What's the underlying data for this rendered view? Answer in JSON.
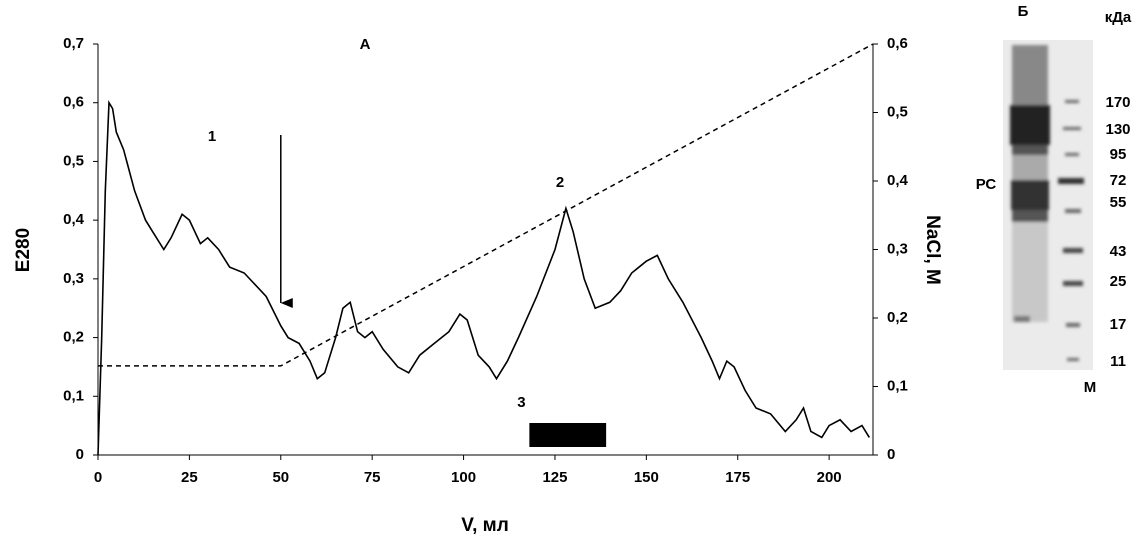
{
  "chart_data": {
    "type": "line",
    "title": "А",
    "x_label": "V, мл",
    "y_label": "E280",
    "y2_label": "NaCl, М",
    "xlim": [
      0,
      212
    ],
    "xticks": [
      0,
      25,
      50,
      75,
      100,
      125,
      150,
      175,
      200
    ],
    "ylim": [
      0,
      0.7
    ],
    "yticks": [
      0,
      {
        "value": 0.1,
        "label": "0,1"
      },
      {
        "value": 0.2,
        "label": "0,2"
      },
      {
        "value": 0.3,
        "label": "0,3"
      },
      {
        "value": 0.4,
        "label": "0,4"
      },
      {
        "value": 0.5,
        "label": "0,5"
      },
      {
        "value": 0.6,
        "label": "0,6"
      },
      {
        "value": 0.7,
        "label": "0,7"
      }
    ],
    "y2lim": [
      0,
      0.6
    ],
    "y2ticks": [
      0,
      {
        "value": 0.1,
        "label": "0,1"
      },
      {
        "value": 0.2,
        "label": "0,2"
      },
      {
        "value": 0.3,
        "label": "0,3"
      },
      {
        "value": 0.4,
        "label": "0,4"
      },
      {
        "value": 0.5,
        "label": "0,5"
      },
      {
        "value": 0.6,
        "label": "0,6"
      }
    ],
    "series": [
      {
        "color": "#000000",
        "dash": false,
        "x": [
          0,
          1,
          2,
          3,
          4,
          5,
          7,
          10,
          13,
          15,
          18,
          20,
          23,
          25,
          28,
          30,
          33,
          36,
          40,
          43,
          46,
          50,
          52,
          55,
          58,
          60,
          62,
          65,
          67,
          69,
          71,
          73,
          75,
          78,
          82,
          85,
          88,
          92,
          96,
          99,
          101,
          104,
          107,
          109,
          112,
          115,
          120,
          125,
          128,
          130,
          133,
          136,
          140,
          143,
          146,
          150,
          153,
          156,
          160,
          165,
          168,
          170,
          172,
          174,
          177,
          180,
          184,
          188,
          191,
          193,
          195,
          198,
          200,
          203,
          206,
          209,
          211
        ],
        "values": [
          0,
          0.2,
          0.45,
          0.6,
          0.59,
          0.55,
          0.52,
          0.45,
          0.4,
          0.38,
          0.35,
          0.37,
          0.41,
          0.4,
          0.36,
          0.37,
          0.35,
          0.32,
          0.31,
          0.29,
          0.27,
          0.22,
          0.2,
          0.19,
          0.16,
          0.13,
          0.14,
          0.2,
          0.25,
          0.26,
          0.21,
          0.2,
          0.21,
          0.18,
          0.15,
          0.14,
          0.17,
          0.19,
          0.21,
          0.24,
          0.23,
          0.17,
          0.15,
          0.13,
          0.16,
          0.2,
          0.27,
          0.35,
          0.42,
          0.38,
          0.3,
          0.25,
          0.26,
          0.28,
          0.31,
          0.33,
          0.34,
          0.3,
          0.26,
          0.2,
          0.16,
          0.13,
          0.16,
          0.15,
          0.11,
          0.08,
          0.07,
          0.04,
          0.06,
          0.08,
          0.04,
          0.03,
          0.05,
          0.06,
          0.04,
          0.05,
          0.03
        ]
      },
      {
        "color": "#000000",
        "dash": true,
        "axis": "y2",
        "x": [
          0,
          50,
          212
        ],
        "values": [
          0.13,
          0.13,
          0.6
        ]
      }
    ],
    "annotations": [
      "1",
      "2"
    ],
    "fraction": {
      "label": "3",
      "x": [
        118,
        139
      ]
    },
    "arrow_x": 50
  },
  "gel": {
    "title": "Б",
    "unit": "кДа",
    "lane_sample": "РС",
    "lane_marker": "М",
    "markers": [
      170,
      130,
      95,
      72,
      55,
      43,
      25,
      17,
      11
    ]
  }
}
